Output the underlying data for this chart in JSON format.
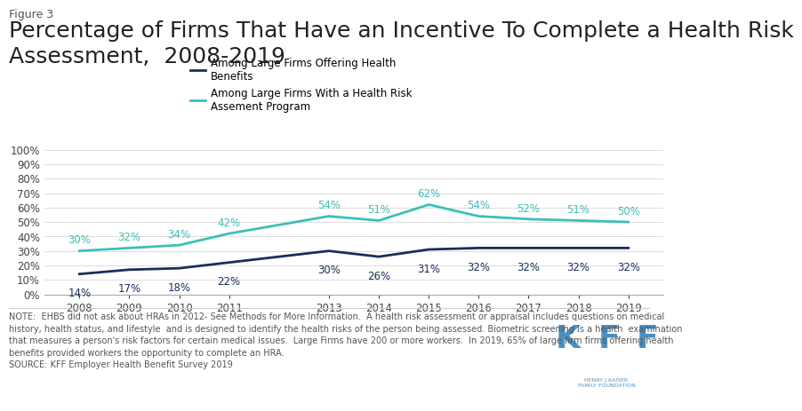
{
  "figure_label": "Figure 3",
  "title": "Percentage of Firms That Have an Incentive To Complete a Health Risk\nAssessment,  2008-2019",
  "title_fontsize": 18,
  "figure_label_fontsize": 9,
  "background_color": "#ffffff",
  "plot_background_color": "#ffffff",
  "years_dark": [
    2008,
    2009,
    2010,
    2011,
    2013,
    2014,
    2015,
    2016,
    2017,
    2018,
    2019
  ],
  "values_dark": [
    14,
    17,
    18,
    22,
    30,
    26,
    31,
    32,
    32,
    32,
    32
  ],
  "years_teal": [
    2008,
    2009,
    2010,
    2011,
    2013,
    2014,
    2015,
    2016,
    2017,
    2018,
    2019
  ],
  "values_teal": [
    30,
    32,
    34,
    42,
    54,
    51,
    62,
    54,
    52,
    51,
    50
  ],
  "dark_color": "#1a2e5a",
  "teal_color": "#3dbfb8",
  "legend_label_dark": "Among Large Firms Offering Health\nBenefits",
  "legend_label_teal": "Among Large Firms With a Health Risk\nAssement Program",
  "yticks": [
    0,
    10,
    20,
    30,
    40,
    50,
    60,
    70,
    80,
    90,
    100
  ],
  "ytick_labels": [
    "0%",
    "10%",
    "20%",
    "30%",
    "40%",
    "50%",
    "60%",
    "70%",
    "80%",
    "90%",
    "100%"
  ],
  "xtick_labels": [
    "2008",
    "2009",
    "2010",
    "2011",
    "2013",
    "2014",
    "2015",
    "2016",
    "2017",
    "2018",
    "2019"
  ],
  "ylim": [
    0,
    105
  ],
  "note_text": "NOTE:  EHBS did not ask about HRAs in 2012- See Methods for More Information.  A health risk assessment or appraisal includes questions on medical\nhistory, health status, and lifestyle  and is designed to identify the health risks of the person being assessed. Biometric screening is a health  examination\nthat measures a person's risk factors for certain medical issues.  Large Firms have 200 or more workers.  In 2019, 65% of large firm firms offering health\nbenefits provided workers the opportunity to complete an HRA.\nSOURCE: KFF Employer Health Benefit Survey 2019",
  "note_fontsize": 7,
  "data_label_fontsize": 8.5,
  "line_width": 2.0,
  "kff_color": "#4a90c4"
}
